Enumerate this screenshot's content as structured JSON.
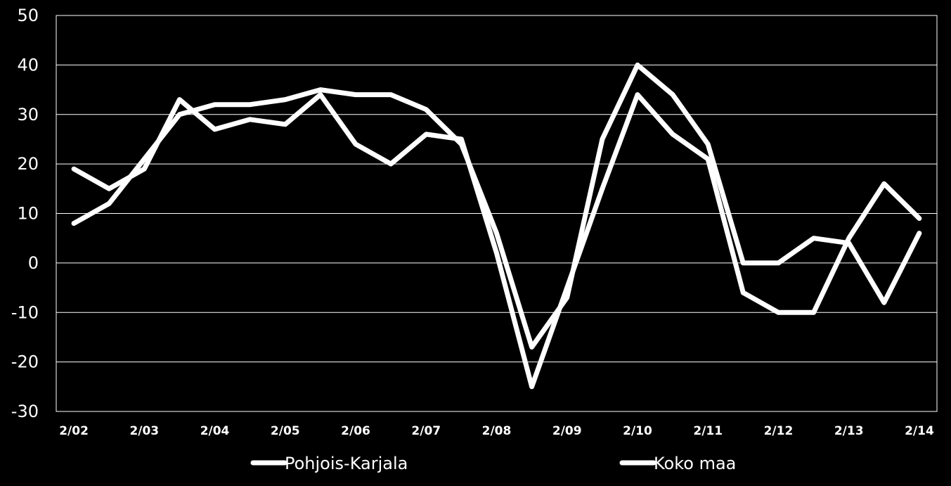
{
  "chart_data": {
    "type": "line",
    "title": "",
    "xlabel": "",
    "ylabel": "",
    "ylim": [
      -30,
      50
    ],
    "y_ticks": [
      "-30",
      "-20",
      "-10",
      "0",
      "10",
      "20",
      "30",
      "40",
      "50"
    ],
    "x_tick_labels": [
      "2/02",
      "2/03",
      "2/04",
      "2/05",
      "2/06",
      "2/07",
      "2/08",
      "2/09",
      "2/10",
      "2/11",
      "2/12",
      "2/13",
      "2/14"
    ],
    "x_periods": 25,
    "grid": true,
    "legend_position": "bottom",
    "colors": {
      "background": "#000000",
      "line": "#ffffff",
      "grid": "#ffffff",
      "axis": "#ffffff"
    },
    "series": [
      {
        "name": "Pohjois-Karjala",
        "values": [
          19,
          15,
          19,
          33,
          27,
          29,
          28,
          34,
          24,
          20,
          26,
          25,
          2,
          -25,
          -5,
          15,
          34,
          26,
          21,
          -6,
          -10,
          -10,
          5,
          16,
          9
        ]
      },
      {
        "name": "Koko maa",
        "values": [
          8,
          12,
          21,
          30,
          32,
          32,
          33,
          35,
          34,
          34,
          31,
          24,
          6,
          -17,
          -7,
          25,
          40,
          34,
          24,
          0,
          0,
          5,
          4,
          -8,
          6
        ]
      }
    ]
  }
}
